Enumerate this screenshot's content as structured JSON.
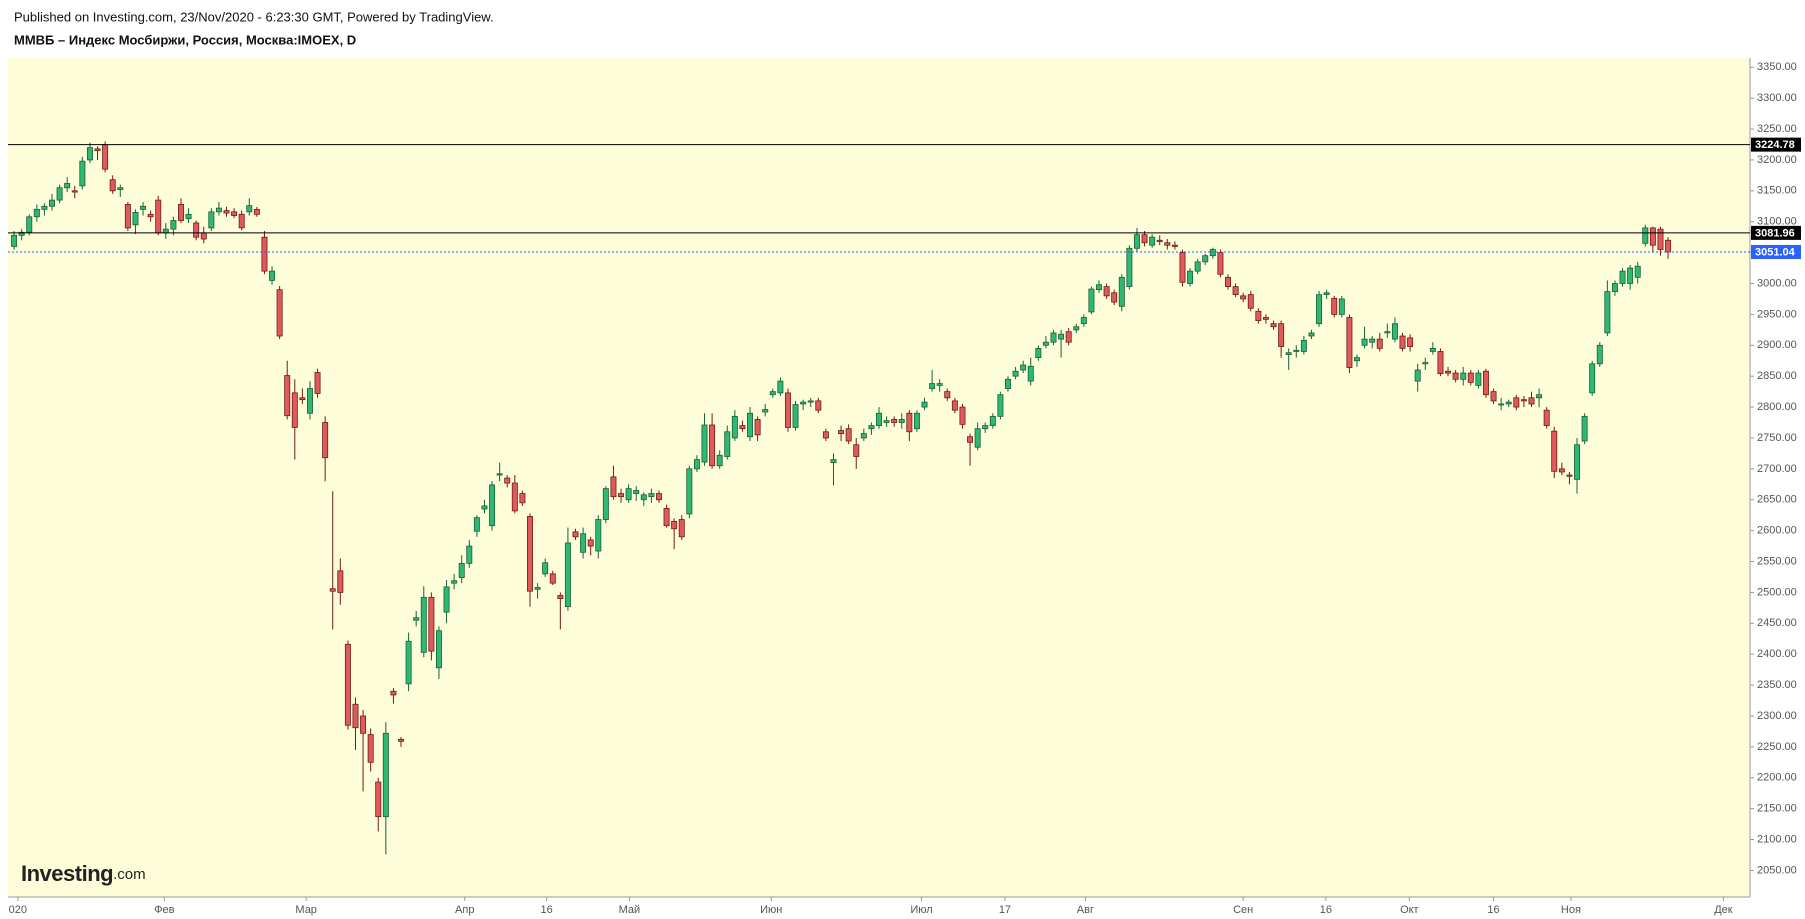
{
  "header": {
    "published": "Published on Investing.com, 23/Nov/2020 - 6:23:30 GMT, Powered by TradingView."
  },
  "logo": {
    "brand": "Investing",
    "suffix": ".com"
  },
  "chart_data": {
    "type": "candlestick",
    "title": "ММВБ – Индекс Мосбиржи, Россия, Москва:IMOEX, D",
    "up_color": "#2eb872",
    "down_color": "#e05a5a",
    "xlim": [
      -0.8,
      228.8
    ],
    "ylim": [
      2007,
      3365
    ],
    "grid": false,
    "xticks": [
      {
        "value": 0.5,
        "label": "020"
      },
      {
        "value": 19.8,
        "label": "Фев"
      },
      {
        "value": 38.5,
        "label": "Мар"
      },
      {
        "value": 59.4,
        "label": "Апр"
      },
      {
        "value": 70.2,
        "label": "16"
      },
      {
        "value": 81.1,
        "label": "Май"
      },
      {
        "value": 99.8,
        "label": "Июн"
      },
      {
        "value": 119.6,
        "label": "Июл"
      },
      {
        "value": 130.6,
        "label": "17"
      },
      {
        "value": 141.2,
        "label": "Авг"
      },
      {
        "value": 162,
        "label": "Сен"
      },
      {
        "value": 172.9,
        "label": "16"
      },
      {
        "value": 183.9,
        "label": "Окт"
      },
      {
        "value": 195,
        "label": "16"
      },
      {
        "value": 205.2,
        "label": "Ноя"
      },
      {
        "value": 225.3,
        "label": "Дек"
      }
    ],
    "yticks": [
      {
        "value": 2050,
        "label": "2050.00"
      },
      {
        "value": 2100,
        "label": "2100.00"
      },
      {
        "value": 2150,
        "label": "2150.00"
      },
      {
        "value": 2200,
        "label": "2200.00"
      },
      {
        "value": 2250,
        "label": "2250.00"
      },
      {
        "value": 2300,
        "label": "2300.00"
      },
      {
        "value": 2350,
        "label": "2350.00"
      },
      {
        "value": 2400,
        "label": "2400.00"
      },
      {
        "value": 2450,
        "label": "2450.00"
      },
      {
        "value": 2500,
        "label": "2500.00"
      },
      {
        "value": 2550,
        "label": "2550.00"
      },
      {
        "value": 2600,
        "label": "2600.00"
      },
      {
        "value": 2650,
        "label": "2650.00"
      },
      {
        "value": 2700,
        "label": "2700.00"
      },
      {
        "value": 2750,
        "label": "2750.00"
      },
      {
        "value": 2800,
        "label": "2800.00"
      },
      {
        "value": 2850,
        "label": "2850.00"
      },
      {
        "value": 2900,
        "label": "2900.00"
      },
      {
        "value": 2950,
        "label": "2950.00"
      },
      {
        "value": 3000,
        "label": "3000.00"
      },
      {
        "value": 3050,
        "label": "3050.00"
      },
      {
        "value": 3100,
        "label": "3100.00"
      },
      {
        "value": 3150,
        "label": "3150.00"
      },
      {
        "value": 3200,
        "label": "3200.00"
      },
      {
        "value": 3250,
        "label": "3250.00"
      },
      {
        "value": 3300,
        "label": "3300.00"
      },
      {
        "value": 3350,
        "label": "3350.00"
      }
    ],
    "levels": [
      {
        "value": 3224.78,
        "color": "#000000",
        "style": "solid"
      },
      {
        "value": 3081.96,
        "color": "#000000",
        "style": "solid"
      },
      {
        "value": 3051.04,
        "color": "#2962ff",
        "style": "dashed"
      }
    ],
    "ohlc": [
      [
        3060,
        3085,
        3055,
        3078
      ],
      [
        3078,
        3088,
        3070,
        3083
      ],
      [
        3083,
        3112,
        3078,
        3108
      ],
      [
        3108,
        3128,
        3100,
        3120
      ],
      [
        3120,
        3130,
        3110,
        3125
      ],
      [
        3125,
        3145,
        3118,
        3135
      ],
      [
        3135,
        3160,
        3130,
        3155
      ],
      [
        3155,
        3172,
        3148,
        3162
      ],
      [
        3150,
        3158,
        3138,
        3148
      ],
      [
        3158,
        3205,
        3152,
        3198
      ],
      [
        3200,
        3228,
        3195,
        3220
      ],
      [
        3218,
        3222,
        3200,
        3215
      ],
      [
        3225,
        3230,
        3180,
        3185
      ],
      [
        3168,
        3175,
        3145,
        3150
      ],
      [
        3152,
        3160,
        3140,
        3155
      ],
      [
        3128,
        3132,
        3085,
        3090
      ],
      [
        3095,
        3120,
        3080,
        3115
      ],
      [
        3120,
        3132,
        3110,
        3125
      ],
      [
        3112,
        3118,
        3100,
        3108
      ],
      [
        3135,
        3142,
        3078,
        3082
      ],
      [
        3082,
        3098,
        3072,
        3088
      ],
      [
        3088,
        3108,
        3078,
        3102
      ],
      [
        3128,
        3138,
        3098,
        3102
      ],
      [
        3105,
        3122,
        3098,
        3112
      ],
      [
        3098,
        3102,
        3070,
        3075
      ],
      [
        3082,
        3092,
        3065,
        3072
      ],
      [
        3090,
        3122,
        3085,
        3116
      ],
      [
        3116,
        3132,
        3110,
        3122
      ],
      [
        3118,
        3124,
        3108,
        3114
      ],
      [
        3116,
        3122,
        3106,
        3110
      ],
      [
        3112,
        3118,
        3086,
        3090
      ],
      [
        3116,
        3138,
        3110,
        3126
      ],
      [
        3120,
        3124,
        3108,
        3112
      ],
      [
        3075,
        3085,
        3015,
        3020
      ],
      [
        3005,
        3028,
        2998,
        3020
      ],
      [
        2990,
        2996,
        2910,
        2915
      ],
      [
        2851,
        2875,
        2780,
        2786
      ],
      [
        2823,
        2845,
        2715,
        2767
      ],
      [
        2815,
        2830,
        2805,
        2812
      ],
      [
        2790,
        2842,
        2780,
        2830
      ],
      [
        2856,
        2862,
        2815,
        2822
      ],
      [
        2775,
        2785,
        2680,
        2718
      ],
      [
        2506,
        2664,
        2440,
        2502
      ],
      [
        2535,
        2555,
        2480,
        2500
      ],
      [
        2416,
        2422,
        2278,
        2285
      ],
      [
        2319,
        2330,
        2245,
        2281
      ],
      [
        2300,
        2310,
        2178,
        2272
      ],
      [
        2270,
        2280,
        2210,
        2225
      ],
      [
        2193,
        2200,
        2113,
        2137
      ],
      [
        2137,
        2290,
        2076,
        2272
      ],
      [
        2340,
        2345,
        2320,
        2334
      ],
      [
        2262,
        2266,
        2250,
        2259
      ],
      [
        2352,
        2435,
        2340,
        2421
      ],
      [
        2455,
        2470,
        2445,
        2459
      ],
      [
        2403,
        2510,
        2395,
        2492
      ],
      [
        2492,
        2500,
        2390,
        2405
      ],
      [
        2378,
        2445,
        2360,
        2438
      ],
      [
        2468,
        2520,
        2450,
        2509
      ],
      [
        2515,
        2530,
        2505,
        2519
      ],
      [
        2524,
        2560,
        2515,
        2547
      ],
      [
        2547,
        2585,
        2540,
        2575
      ],
      [
        2599,
        2625,
        2590,
        2621
      ],
      [
        2635,
        2650,
        2628,
        2640
      ],
      [
        2608,
        2680,
        2600,
        2674
      ],
      [
        2690,
        2710,
        2680,
        2692
      ],
      [
        2685,
        2690,
        2670,
        2677
      ],
      [
        2677,
        2690,
        2628,
        2632
      ],
      [
        2660,
        2665,
        2640,
        2645
      ],
      [
        2623,
        2628,
        2477,
        2502
      ],
      [
        2505,
        2515,
        2490,
        2508
      ],
      [
        2530,
        2555,
        2525,
        2548
      ],
      [
        2530,
        2535,
        2512,
        2515
      ],
      [
        2495,
        2500,
        2440,
        2490
      ],
      [
        2477,
        2605,
        2470,
        2580
      ],
      [
        2598,
        2603,
        2585,
        2590
      ],
      [
        2565,
        2605,
        2555,
        2595
      ],
      [
        2585,
        2590,
        2560,
        2575
      ],
      [
        2567,
        2625,
        2555,
        2618
      ],
      [
        2618,
        2672,
        2612,
        2668
      ],
      [
        2687,
        2705,
        2650,
        2655
      ],
      [
        2660,
        2668,
        2645,
        2655
      ],
      [
        2650,
        2675,
        2645,
        2668
      ],
      [
        2660,
        2672,
        2648,
        2665
      ],
      [
        2650,
        2662,
        2640,
        2658
      ],
      [
        2655,
        2668,
        2645,
        2660
      ],
      [
        2660,
        2665,
        2645,
        2650
      ],
      [
        2636,
        2642,
        2605,
        2608
      ],
      [
        2615,
        2620,
        2570,
        2603
      ],
      [
        2618,
        2625,
        2585,
        2590
      ],
      [
        2627,
        2705,
        2620,
        2700
      ],
      [
        2700,
        2722,
        2695,
        2715
      ],
      [
        2711,
        2790,
        2705,
        2771
      ],
      [
        2771,
        2790,
        2700,
        2705
      ],
      [
        2705,
        2730,
        2700,
        2722
      ],
      [
        2720,
        2770,
        2715,
        2760
      ],
      [
        2750,
        2795,
        2745,
        2785
      ],
      [
        2770,
        2778,
        2760,
        2765
      ],
      [
        2752,
        2800,
        2745,
        2790
      ],
      [
        2780,
        2785,
        2745,
        2755
      ],
      [
        2792,
        2805,
        2785,
        2796
      ],
      [
        2820,
        2830,
        2815,
        2825
      ],
      [
        2823,
        2848,
        2818,
        2842
      ],
      [
        2823,
        2830,
        2760,
        2767
      ],
      [
        2767,
        2810,
        2762,
        2804
      ],
      [
        2805,
        2812,
        2795,
        2808
      ],
      [
        2808,
        2815,
        2800,
        2810
      ],
      [
        2810,
        2815,
        2790,
        2795
      ],
      [
        2760,
        2765,
        2745,
        2750
      ],
      [
        2710,
        2725,
        2673,
        2715
      ],
      [
        2762,
        2770,
        2745,
        2757
      ],
      [
        2765,
        2772,
        2740,
        2745
      ],
      [
        2739,
        2750,
        2700,
        2720
      ],
      [
        2750,
        2765,
        2745,
        2757
      ],
      [
        2765,
        2775,
        2755,
        2770
      ],
      [
        2770,
        2800,
        2765,
        2790
      ],
      [
        2775,
        2785,
        2768,
        2778
      ],
      [
        2780,
        2785,
        2768,
        2775
      ],
      [
        2775,
        2790,
        2765,
        2780
      ],
      [
        2790,
        2795,
        2745,
        2760
      ],
      [
        2765,
        2795,
        2760,
        2790
      ],
      [
        2800,
        2815,
        2795,
        2808
      ],
      [
        2830,
        2860,
        2825,
        2838
      ],
      [
        2835,
        2845,
        2825,
        2838
      ],
      [
        2825,
        2830,
        2810,
        2815
      ],
      [
        2810,
        2815,
        2790,
        2795
      ],
      [
        2800,
        2805,
        2765,
        2772
      ],
      [
        2752,
        2757,
        2705,
        2743
      ],
      [
        2735,
        2775,
        2730,
        2765
      ],
      [
        2765,
        2775,
        2758,
        2770
      ],
      [
        2770,
        2790,
        2765,
        2785
      ],
      [
        2785,
        2825,
        2780,
        2820
      ],
      [
        2830,
        2850,
        2825,
        2845
      ],
      [
        2850,
        2865,
        2845,
        2858
      ],
      [
        2860,
        2875,
        2855,
        2868
      ],
      [
        2842,
        2880,
        2835,
        2866
      ],
      [
        2880,
        2900,
        2875,
        2895
      ],
      [
        2900,
        2915,
        2895,
        2905
      ],
      [
        2905,
        2925,
        2900,
        2920
      ],
      [
        2910,
        2925,
        2880,
        2918
      ],
      [
        2922,
        2928,
        2900,
        2905
      ],
      [
        2925,
        2935,
        2920,
        2930
      ],
      [
        2935,
        2950,
        2930,
        2945
      ],
      [
        2954,
        2995,
        2950,
        2991
      ],
      [
        2990,
        3005,
        2985,
        2998
      ],
      [
        2995,
        3000,
        2975,
        2980
      ],
      [
        2985,
        2990,
        2965,
        2970
      ],
      [
        2963,
        3015,
        2955,
        3010
      ],
      [
        2995,
        3062,
        2990,
        3057
      ],
      [
        3057,
        3090,
        3052,
        3079
      ],
      [
        3079,
        3085,
        3060,
        3066
      ],
      [
        3062,
        3080,
        3058,
        3075
      ],
      [
        3070,
        3078,
        3062,
        3068
      ],
      [
        3066,
        3072,
        3055,
        3062
      ],
      [
        3062,
        3068,
        3055,
        3060
      ],
      [
        3050,
        3055,
        2995,
        3002
      ],
      [
        3000,
        3025,
        2995,
        3020
      ],
      [
        3020,
        3040,
        3015,
        3035
      ],
      [
        3035,
        3048,
        3030,
        3045
      ],
      [
        3045,
        3058,
        3040,
        3055
      ],
      [
        3050,
        3055,
        3010,
        3015
      ],
      [
        3010,
        3015,
        2990,
        2995
      ],
      [
        2995,
        3000,
        2978,
        2982
      ],
      [
        2980,
        2985,
        2970,
        2975
      ],
      [
        2982,
        2988,
        2955,
        2960
      ],
      [
        2955,
        2960,
        2935,
        2940
      ],
      [
        2945,
        2950,
        2935,
        2942
      ],
      [
        2935,
        2940,
        2925,
        2930
      ],
      [
        2935,
        2940,
        2880,
        2898
      ],
      [
        2885,
        2895,
        2860,
        2888
      ],
      [
        2890,
        2900,
        2880,
        2892
      ],
      [
        2890,
        2915,
        2885,
        2908
      ],
      [
        2915,
        2925,
        2910,
        2920
      ],
      [
        2935,
        2988,
        2930,
        2982
      ],
      [
        2982,
        2990,
        2975,
        2985
      ],
      [
        2976,
        2980,
        2945,
        2950
      ],
      [
        2950,
        2980,
        2945,
        2975
      ],
      [
        2945,
        2950,
        2855,
        2864
      ],
      [
        2875,
        2885,
        2865,
        2880
      ],
      [
        2900,
        2930,
        2895,
        2910
      ],
      [
        2905,
        2915,
        2895,
        2910
      ],
      [
        2910,
        2920,
        2890,
        2895
      ],
      [
        2920,
        2935,
        2912,
        2922
      ],
      [
        2910,
        2945,
        2905,
        2935
      ],
      [
        2915,
        2920,
        2890,
        2895
      ],
      [
        2912,
        2918,
        2890,
        2898
      ],
      [
        2842,
        2870,
        2825,
        2860
      ],
      [
        2870,
        2880,
        2860,
        2872
      ],
      [
        2890,
        2905,
        2885,
        2895
      ],
      [
        2890,
        2895,
        2850,
        2854
      ],
      [
        2858,
        2865,
        2850,
        2855
      ],
      [
        2855,
        2860,
        2840,
        2845
      ],
      [
        2845,
        2865,
        2835,
        2855
      ],
      [
        2855,
        2860,
        2835,
        2840
      ],
      [
        2835,
        2860,
        2830,
        2855
      ],
      [
        2858,
        2862,
        2815,
        2820
      ],
      [
        2825,
        2830,
        2805,
        2810
      ],
      [
        2805,
        2815,
        2795,
        2805
      ],
      [
        2805,
        2812,
        2800,
        2808
      ],
      [
        2815,
        2820,
        2795,
        2800
      ],
      [
        2812,
        2818,
        2800,
        2810
      ],
      [
        2815,
        2825,
        2800,
        2805
      ],
      [
        2815,
        2830,
        2800,
        2820
      ],
      [
        2795,
        2800,
        2765,
        2770
      ],
      [
        2761,
        2768,
        2685,
        2696
      ],
      [
        2700,
        2710,
        2690,
        2695
      ],
      [
        2690,
        2695,
        2675,
        2688
      ],
      [
        2683,
        2750,
        2660,
        2739
      ],
      [
        2745,
        2790,
        2740,
        2785
      ],
      [
        2823,
        2875,
        2818,
        2870
      ],
      [
        2870,
        2905,
        2865,
        2900
      ],
      [
        2920,
        3005,
        2915,
        2987
      ],
      [
        2987,
        3005,
        2980,
        3000
      ],
      [
        3000,
        3025,
        2995,
        3020
      ],
      [
        3000,
        3030,
        2990,
        3025
      ],
      [
        3010,
        3035,
        3000,
        3028
      ],
      [
        3065,
        3095,
        3060,
        3090
      ],
      [
        3090,
        3092,
        3050,
        3062
      ],
      [
        3088,
        3092,
        3045,
        3055
      ],
      [
        3070,
        3075,
        3040,
        3051
      ]
    ]
  }
}
